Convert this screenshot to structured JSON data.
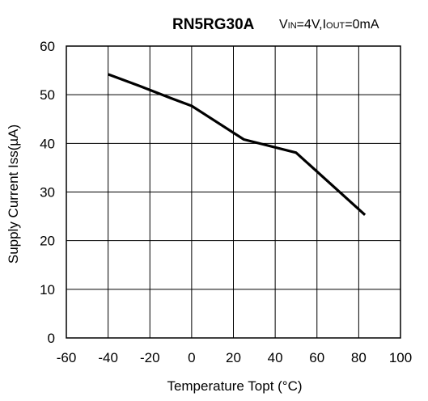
{
  "chart_data": {
    "type": "line",
    "title": "RN5RG30A",
    "subtitle": {
      "v_main": "V",
      "v_sub": "IN",
      "v_rest": "=4V,I",
      "i_sub": "OUT",
      "i_rest": "=0mA"
    },
    "xlabel": "Temperature Topt (°C)",
    "ylabel": "Supply Current Iss(µA)",
    "xlim": [
      -60,
      100
    ],
    "ylim": [
      0,
      60
    ],
    "xticks": [
      -60,
      -40,
      -20,
      0,
      20,
      40,
      60,
      80,
      100
    ],
    "yticks": [
      0,
      10,
      20,
      30,
      40,
      50,
      60
    ],
    "grid": true,
    "series": [
      {
        "x": [
          -40,
          -25,
          -10,
          0,
          25,
          50,
          83
        ],
        "y": [
          54.2,
          51.8,
          49.3,
          47.7,
          40.8,
          38.1,
          25.3
        ]
      }
    ]
  },
  "colors": {
    "line": "#000000",
    "grid": "#000000"
  }
}
